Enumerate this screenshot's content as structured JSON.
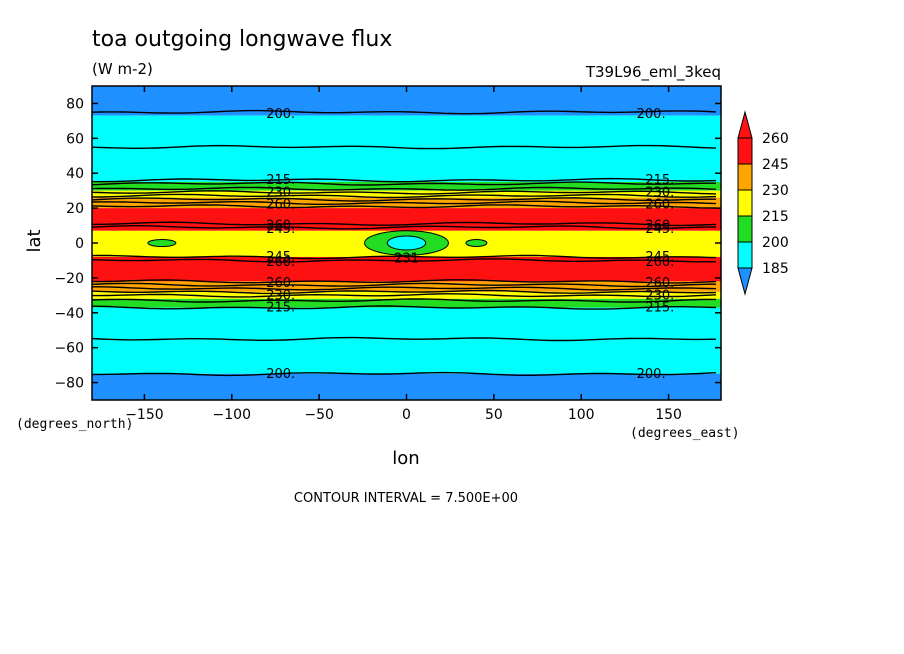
{
  "chart_data": {
    "type": "heatmap",
    "title": "toa outgoing longwave flux",
    "units": "(W m-2)",
    "run_id": "T39L96_eml_3keq",
    "xlabel": "lon",
    "ylabel": "lat",
    "x_units": "(degrees_east)",
    "y_units": "(degrees_north)",
    "xlim": [
      -180,
      180
    ],
    "ylim": [
      -90,
      90
    ],
    "x_ticks": [
      -150,
      -100,
      -50,
      0,
      50,
      100,
      150
    ],
    "y_ticks": [
      -80,
      -60,
      -40,
      -20,
      0,
      20,
      40,
      60,
      80
    ],
    "contour_interval_text": "CONTOUR INTERVAL = 7.500E+00",
    "colorbar": {
      "levels": [
        185,
        200,
        215,
        230,
        245,
        260
      ],
      "colors": [
        "#1e90ff",
        "#00ffff",
        "#22dd22",
        "#ffff00",
        "#ffa500",
        "#ff1111",
        "#ff1111"
      ],
      "extend": "both"
    },
    "bands": [
      {
        "lat_from": 73,
        "lat_to": 90,
        "color": "#1e90ff"
      },
      {
        "lat_from": 35,
        "lat_to": 73,
        "color": "#00ffff"
      },
      {
        "lat_from": 30,
        "lat_to": 35,
        "color": "#22dd22"
      },
      {
        "lat_from": 26,
        "lat_to": 30,
        "color": "#ffff00"
      },
      {
        "lat_from": 20,
        "lat_to": 26,
        "color": "#ffa500"
      },
      {
        "lat_from": 7,
        "lat_to": 20,
        "color": "#ff1111"
      },
      {
        "lat_from": -8,
        "lat_to": 7,
        "color": "#ffff00"
      },
      {
        "lat_from": -22,
        "lat_to": -8,
        "color": "#ff1111"
      },
      {
        "lat_from": -28,
        "lat_to": -22,
        "color": "#ffa500"
      },
      {
        "lat_from": -32,
        "lat_to": -28,
        "color": "#ffff00"
      },
      {
        "lat_from": -37,
        "lat_to": -32,
        "color": "#22dd22"
      },
      {
        "lat_from": -75,
        "lat_to": -37,
        "color": "#00ffff"
      },
      {
        "lat_from": -90,
        "lat_to": -75,
        "color": "#1e90ff"
      }
    ],
    "contour_lines_lat": [
      75,
      55,
      36,
      34,
      31,
      29,
      27,
      25,
      23,
      21,
      11,
      9,
      -8,
      -10,
      -22,
      -24,
      -26,
      -28,
      -30,
      -33,
      -37,
      -55,
      -75
    ],
    "features": [
      {
        "lon": 0,
        "lat": 0,
        "rx": 24,
        "ry": 7,
        "color": "#22dd22"
      },
      {
        "lon": 40,
        "lat": 0,
        "rx": 6,
        "ry": 2,
        "color": "#22dd22"
      },
      {
        "lon": -140,
        "lat": 0,
        "rx": 8,
        "ry": 2,
        "color": "#22dd22"
      },
      {
        "lon": 0,
        "lat": 0,
        "rx": 11,
        "ry": 4,
        "color": "#00ffff"
      }
    ],
    "contour_labels": [
      {
        "text": "200.",
        "lon": -72,
        "lat": 74
      },
      {
        "text": "200.",
        "lon": 140,
        "lat": 74
      },
      {
        "text": "215.",
        "lon": -72,
        "lat": 36
      },
      {
        "text": "215.",
        "lon": 145,
        "lat": 36
      },
      {
        "text": "230.",
        "lon": -72,
        "lat": 29
      },
      {
        "text": "230.",
        "lon": 145,
        "lat": 29
      },
      {
        "text": "260.",
        "lon": -72,
        "lat": 22
      },
      {
        "text": "260.",
        "lon": 145,
        "lat": 22
      },
      {
        "text": "260.",
        "lon": -72,
        "lat": 10
      },
      {
        "text": "260.",
        "lon": 145,
        "lat": 10
      },
      {
        "text": "245.",
        "lon": -72,
        "lat": 8
      },
      {
        "text": "245.",
        "lon": 145,
        "lat": 8
      },
      {
        "text": "245.",
        "lon": -72,
        "lat": -8
      },
      {
        "text": "245.",
        "lon": 145,
        "lat": -8
      },
      {
        "text": "260.",
        "lon": -72,
        "lat": -11
      },
      {
        "text": "260.",
        "lon": 145,
        "lat": -11
      },
      {
        "text": "260.",
        "lon": -72,
        "lat": -23
      },
      {
        "text": "260.",
        "lon": 145,
        "lat": -23
      },
      {
        "text": "230.",
        "lon": -72,
        "lat": -30
      },
      {
        "text": "230.",
        "lon": 145,
        "lat": -30
      },
      {
        "text": "215.",
        "lon": -72,
        "lat": -37
      },
      {
        "text": "215.",
        "lon": 145,
        "lat": -37
      },
      {
        "text": "200.",
        "lon": -72,
        "lat": -75
      },
      {
        "text": "200.",
        "lon": 140,
        "lat": -75
      },
      {
        "text": "231",
        "lon": 0,
        "lat": -9
      }
    ]
  }
}
